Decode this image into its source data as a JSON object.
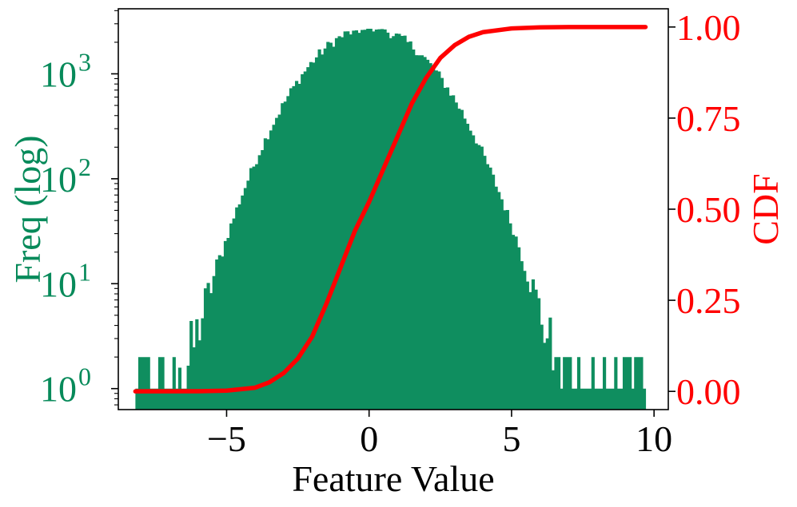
{
  "chart_data": {
    "type": "histogram",
    "xlabel": "Feature Value",
    "ylabel_left": "Freq (log)",
    "ylabel_right": "CDF",
    "xlim": [
      -8.8,
      10.5
    ],
    "ylim_left_log10": [
      -0.2,
      3.62
    ],
    "ylim_right": [
      -0.05,
      1.05
    ],
    "yscale_left": "log",
    "grid": false,
    "legend": "none",
    "x_ticks": [
      {
        "value": -5,
        "label": "−5"
      },
      {
        "value": 0,
        "label": "0"
      },
      {
        "value": 5,
        "label": "5"
      },
      {
        "value": 10,
        "label": "10"
      }
    ],
    "y_left_ticks": [
      {
        "exp": 0,
        "base": "10",
        "sup": "0"
      },
      {
        "exp": 1,
        "base": "10",
        "sup": "1"
      },
      {
        "exp": 2,
        "base": "10",
        "sup": "2"
      },
      {
        "exp": 3,
        "base": "10",
        "sup": "3"
      }
    ],
    "y_right_ticks": [
      {
        "value": 0.0,
        "label": "0.00"
      },
      {
        "value": 0.25,
        "label": "0.25"
      },
      {
        "value": 0.5,
        "label": "0.50"
      },
      {
        "value": 0.75,
        "label": "0.75"
      },
      {
        "value": 1.0,
        "label": "1.00"
      }
    ],
    "histogram": {
      "x_range": [
        -8.2,
        9.7
      ],
      "bin_width": 0.1,
      "peak_frequency": 2700,
      "peak_location": 0.0,
      "color": "#078a5a"
    },
    "cdf": {
      "x_range": [
        -8.2,
        9.7
      ],
      "points": [
        [
          -8.2,
          0.0
        ],
        [
          -6.0,
          0.0005
        ],
        [
          -5.0,
          0.002
        ],
        [
          -4.0,
          0.01
        ],
        [
          -3.5,
          0.025
        ],
        [
          -3.0,
          0.05
        ],
        [
          -2.5,
          0.09
        ],
        [
          -2.0,
          0.15
        ],
        [
          -1.5,
          0.24
        ],
        [
          -1.0,
          0.34
        ],
        [
          -0.5,
          0.44
        ],
        [
          0.0,
          0.52
        ],
        [
          0.5,
          0.61
        ],
        [
          1.0,
          0.7
        ],
        [
          1.5,
          0.79
        ],
        [
          2.0,
          0.86
        ],
        [
          2.5,
          0.915
        ],
        [
          3.0,
          0.95
        ],
        [
          3.5,
          0.973
        ],
        [
          4.0,
          0.986
        ],
        [
          5.0,
          0.996
        ],
        [
          6.0,
          0.999
        ],
        [
          7.0,
          1.0
        ],
        [
          9.7,
          1.0
        ]
      ],
      "color": "#ff0000"
    },
    "colors": {
      "left_axis": "#078a5a",
      "right_axis": "#ff0000",
      "frame": "#000000"
    }
  }
}
